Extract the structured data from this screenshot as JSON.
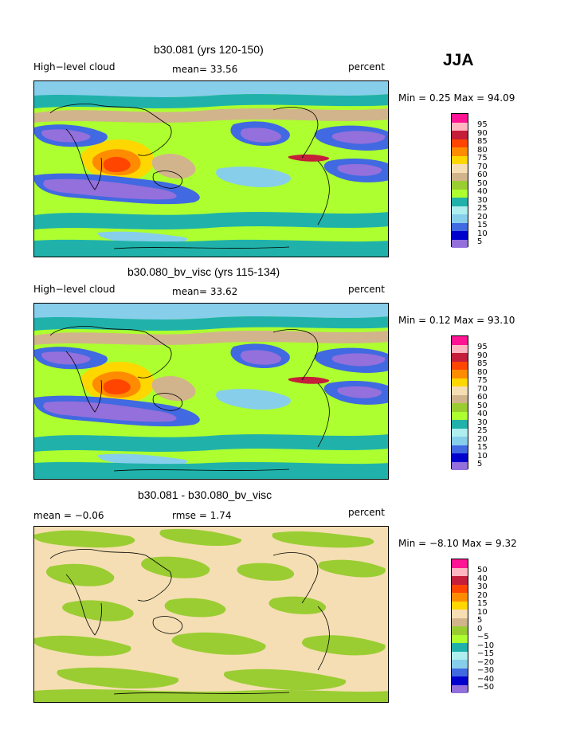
{
  "season": "JJA",
  "panels": [
    {
      "title": "b30.081 (yrs 120-150)",
      "left_label": "High−level cloud",
      "mid_label": "mean=  33.56",
      "right_label": "percent",
      "minmax": "Min =   0.25 Max =  94.09",
      "legend_labels": [
        "95",
        "90",
        "85",
        "80",
        "75",
        "70",
        "60",
        "50",
        "40",
        "30",
        "25",
        "20",
        "15",
        "10",
        "5"
      ]
    },
    {
      "title": "b30.080_bv_visc (yrs 115-134)",
      "left_label": "High−level cloud",
      "mid_label": "mean=  33.62",
      "right_label": "percent",
      "minmax": "Min =   0.12 Max =  93.10",
      "legend_labels": [
        "95",
        "90",
        "85",
        "80",
        "75",
        "70",
        "60",
        "50",
        "40",
        "30",
        "25",
        "20",
        "15",
        "10",
        "5"
      ]
    },
    {
      "title": "b30.081 - b30.080_bv_visc",
      "left_label": "mean =  −0.06",
      "mid_label": "rmse =    1.74",
      "right_label": "percent",
      "minmax": "Min =  −8.10 Max =    9.32",
      "legend_labels": [
        "50",
        "40",
        "30",
        "20",
        "15",
        "10",
        "5",
        "0",
        "−5",
        "−10",
        "−15",
        "−20",
        "−30",
        "−40",
        "−50"
      ]
    }
  ],
  "colorbar_colors": [
    "#ff1493",
    "#ffb6c1",
    "#c41e3a",
    "#ff4500",
    "#ff8c00",
    "#ffd700",
    "#f5deb3",
    "#d2b48c",
    "#9acd32",
    "#adff2f",
    "#20b2aa",
    "#afeeee",
    "#87ceeb",
    "#4169e1",
    "#0000cd",
    "#9370db"
  ],
  "map_colors": {
    "background": "#adff2f",
    "wheat": "#f5deb3",
    "tan": "#d2b48c",
    "olive": "#9acd32",
    "teal": "#20b2aa",
    "lightblue": "#afeeee",
    "skyblue": "#87ceeb",
    "royalblue": "#4169e1",
    "darkblue": "#0000cd",
    "purple": "#9370db",
    "yellow": "#ffd700",
    "orange": "#ff8c00",
    "red": "#c41e3a",
    "redorange": "#ff4500",
    "coastline": "#000000"
  }
}
